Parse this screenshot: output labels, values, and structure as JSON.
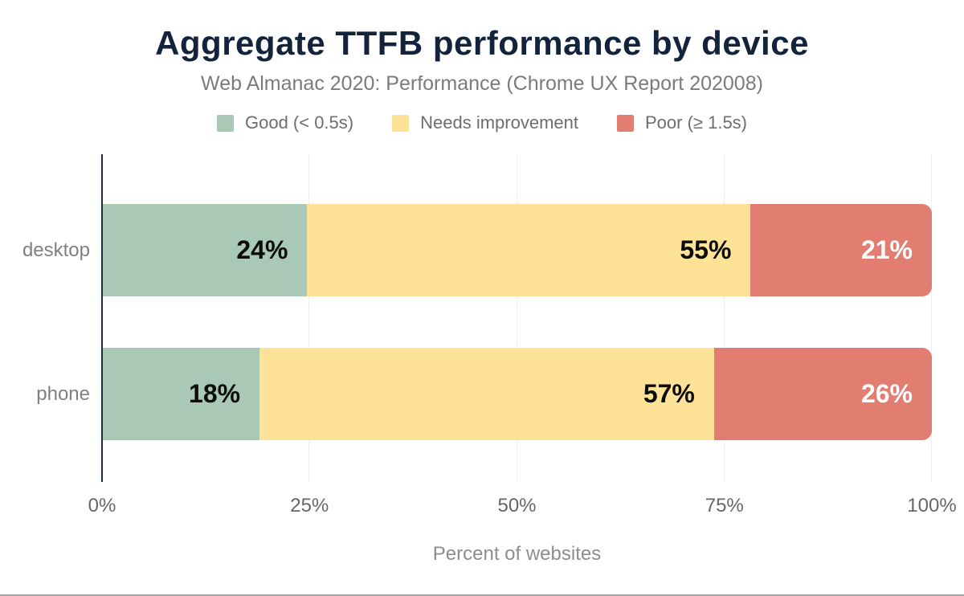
{
  "chart_data": {
    "type": "bar",
    "orientation": "horizontal",
    "stacked": true,
    "title": "Aggregate TTFB performance by device",
    "subtitle": "Web Almanac 2020: Performance (Chrome UX Report 202008)",
    "xlabel": "Percent of websites",
    "categories": [
      "desktop",
      "phone"
    ],
    "series": [
      {
        "name": "Good (< 0.5s)",
        "color": "#a9c8b5",
        "values": [
          24,
          18
        ]
      },
      {
        "name": "Needs improvement",
        "color": "#fde297",
        "values": [
          55,
          57
        ]
      },
      {
        "name": "Poor (≥ 1.5s)",
        "color": "#e27d72",
        "values": [
          21,
          26
        ]
      }
    ],
    "value_labels": [
      [
        "24%",
        "55%",
        "21%"
      ],
      [
        "18%",
        "57%",
        "26%"
      ]
    ],
    "x_ticks": [
      "0%",
      "25%",
      "50%",
      "75%",
      "100%"
    ],
    "xlim": [
      0,
      100
    ],
    "grid": true,
    "legend_position": "top",
    "colors": {
      "title": "#14233c",
      "subtitle": "#7b7b7b",
      "axis_line": "#1b2a41",
      "gridline": "#f0f0f0",
      "tick_text": "#63666c",
      "value_text_dark": "#0c0c0c",
      "value_text_light": "#ffffff"
    }
  }
}
